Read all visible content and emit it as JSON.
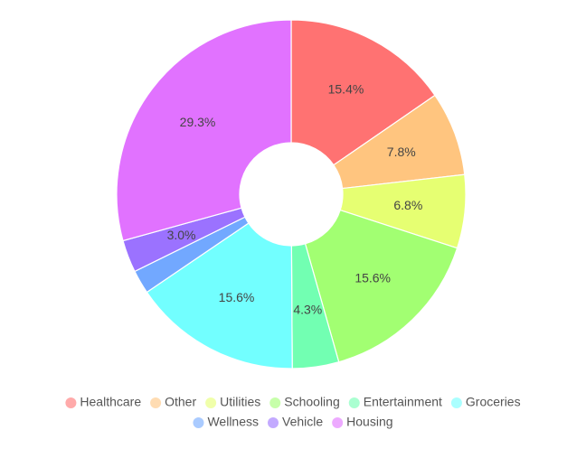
{
  "chart_data": {
    "type": "donut",
    "categories": [
      "Healthcare",
      "Other",
      "Utilities",
      "Schooling",
      "Entertainment",
      "Groceries",
      "Wellness",
      "Vehicle",
      "Housing"
    ],
    "values": [
      15.4,
      7.8,
      6.8,
      15.6,
      4.3,
      15.6,
      2.2,
      3.0,
      29.3
    ],
    "value_labels": [
      "15.4%",
      "7.8%",
      "6.8%",
      "15.6%",
      "4.3%",
      "15.6%",
      null,
      "3.0%",
      "29.3%"
    ],
    "colors": [
      "#ff7272",
      "#ffc57f",
      "#e6ff72",
      "#a2ff72",
      "#72ffb2",
      "#72ffff",
      "#72a8ff",
      "#9b72ff",
      "#e172ff"
    ]
  }
}
